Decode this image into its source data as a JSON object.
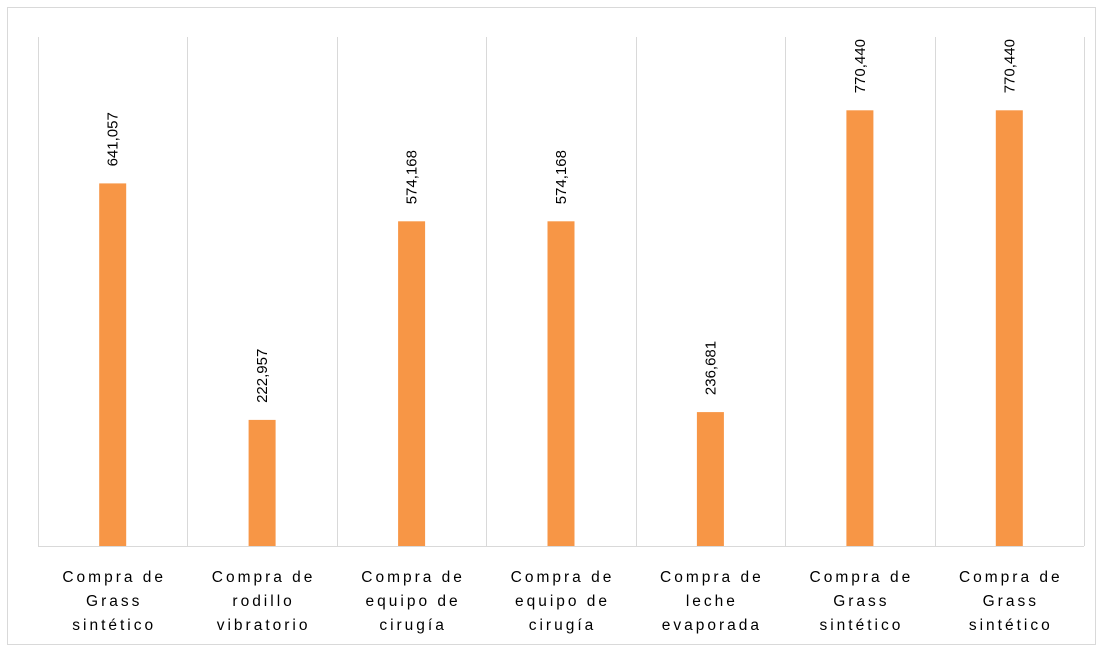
{
  "chart_data": {
    "type": "bar",
    "title": "",
    "xlabel": "",
    "ylabel": "",
    "categories": [
      [
        "Compra de",
        "Grass",
        "sintético"
      ],
      [
        "Compra de",
        "rodillo",
        "vibratorio"
      ],
      [
        "Compra de",
        "equipo de",
        "cirugía"
      ],
      [
        "Compra de",
        "equipo de",
        "cirugía"
      ],
      [
        "Compra de",
        "leche",
        "evaporada"
      ],
      [
        "Compra de",
        "Grass",
        "sintético"
      ],
      [
        "Compra de",
        "Grass",
        "sintético"
      ]
    ],
    "values": [
      641057,
      222957,
      574168,
      574168,
      236681,
      770440,
      770440
    ],
    "data_labels": [
      "641,057",
      "222,957",
      "574,168",
      "574,168",
      "236,681",
      "770,440",
      "770,440"
    ],
    "ylim": [
      0,
      900000
    ],
    "bar_color": "#f79646",
    "grid": "vertical category separators",
    "legend": "none"
  }
}
